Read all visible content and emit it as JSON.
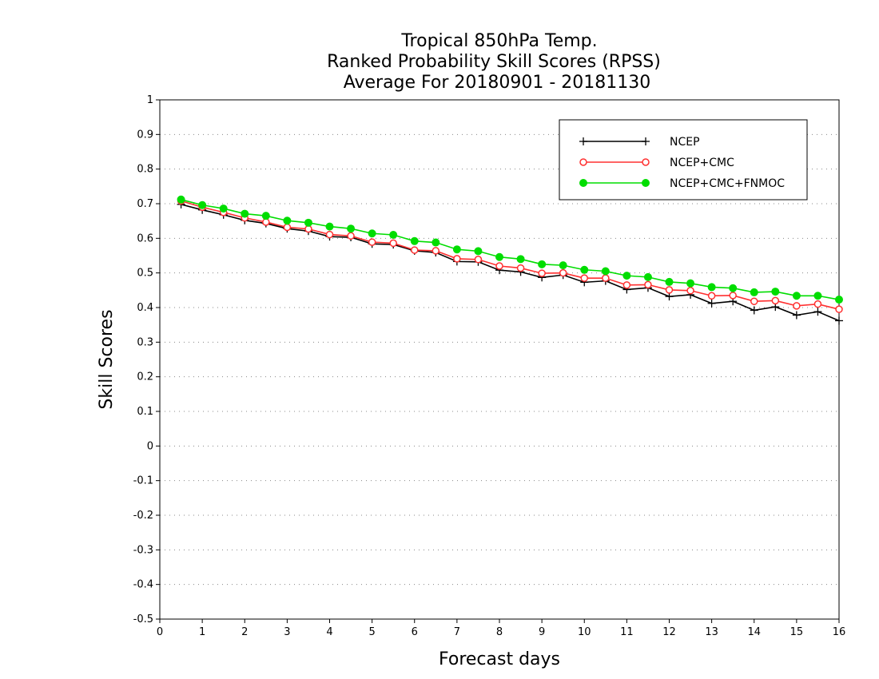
{
  "chart_data": {
    "type": "line",
    "title_lines": [
      "Tropical 850hPa Temp.",
      "Ranked Probability Skill Scores (RPSS)",
      "Average For 20180901 - 20181130"
    ],
    "xlabel": "Forecast days",
    "ylabel": "Skill Scores",
    "xlim": [
      0,
      16
    ],
    "ylim": [
      -0.5,
      1
    ],
    "xticks": [
      "0",
      "1",
      "2",
      "3",
      "4",
      "5",
      "6",
      "7",
      "8",
      "9",
      "10",
      "11",
      "12",
      "13",
      "14",
      "15",
      "16"
    ],
    "yticks": [
      "1",
      "0.9",
      "0.8",
      "0.7",
      "0.6",
      "0.5",
      "0.4",
      "0.3",
      "0.2",
      "0.1",
      "0",
      "-0.1",
      "-0.2",
      "-0.3",
      "-0.4",
      "-0.5"
    ],
    "grid": true,
    "legend_position": "top-right",
    "x": [
      0.5,
      1,
      1.5,
      2,
      2.5,
      3,
      3.5,
      4,
      4.5,
      5,
      5.5,
      6,
      6.5,
      7,
      7.5,
      8,
      8.5,
      9,
      9.5,
      10,
      10.5,
      11,
      11.5,
      12,
      12.5,
      13,
      13.5,
      14,
      14.5,
      15,
      15.5,
      16
    ],
    "series": [
      {
        "name": "NCEP",
        "color": "#000000",
        "marker": "plus",
        "values": [
          0.698,
          0.682,
          0.668,
          0.652,
          0.643,
          0.628,
          0.621,
          0.605,
          0.603,
          0.584,
          0.582,
          0.564,
          0.559,
          0.533,
          0.532,
          0.508,
          0.503,
          0.487,
          0.494,
          0.473,
          0.477,
          0.452,
          0.457,
          0.432,
          0.437,
          0.412,
          0.418,
          0.392,
          0.402,
          0.378,
          0.388,
          0.362
        ]
      },
      {
        "name": "NCEP+CMC",
        "color": "#ff3030",
        "marker": "open-circle",
        "values": [
          0.708,
          0.69,
          0.675,
          0.659,
          0.647,
          0.632,
          0.627,
          0.611,
          0.607,
          0.589,
          0.586,
          0.566,
          0.564,
          0.541,
          0.539,
          0.52,
          0.514,
          0.499,
          0.5,
          0.485,
          0.485,
          0.465,
          0.466,
          0.451,
          0.449,
          0.434,
          0.435,
          0.418,
          0.42,
          0.405,
          0.41,
          0.395
        ]
      },
      {
        "name": "NCEP+CMC+FNMOC",
        "color": "#00dd00",
        "marker": "filled-circle",
        "values": [
          0.712,
          0.696,
          0.686,
          0.671,
          0.665,
          0.651,
          0.645,
          0.634,
          0.628,
          0.614,
          0.61,
          0.592,
          0.588,
          0.568,
          0.563,
          0.546,
          0.54,
          0.525,
          0.522,
          0.509,
          0.505,
          0.492,
          0.488,
          0.474,
          0.47,
          0.459,
          0.456,
          0.444,
          0.446,
          0.434,
          0.434,
          0.423
        ]
      }
    ]
  }
}
